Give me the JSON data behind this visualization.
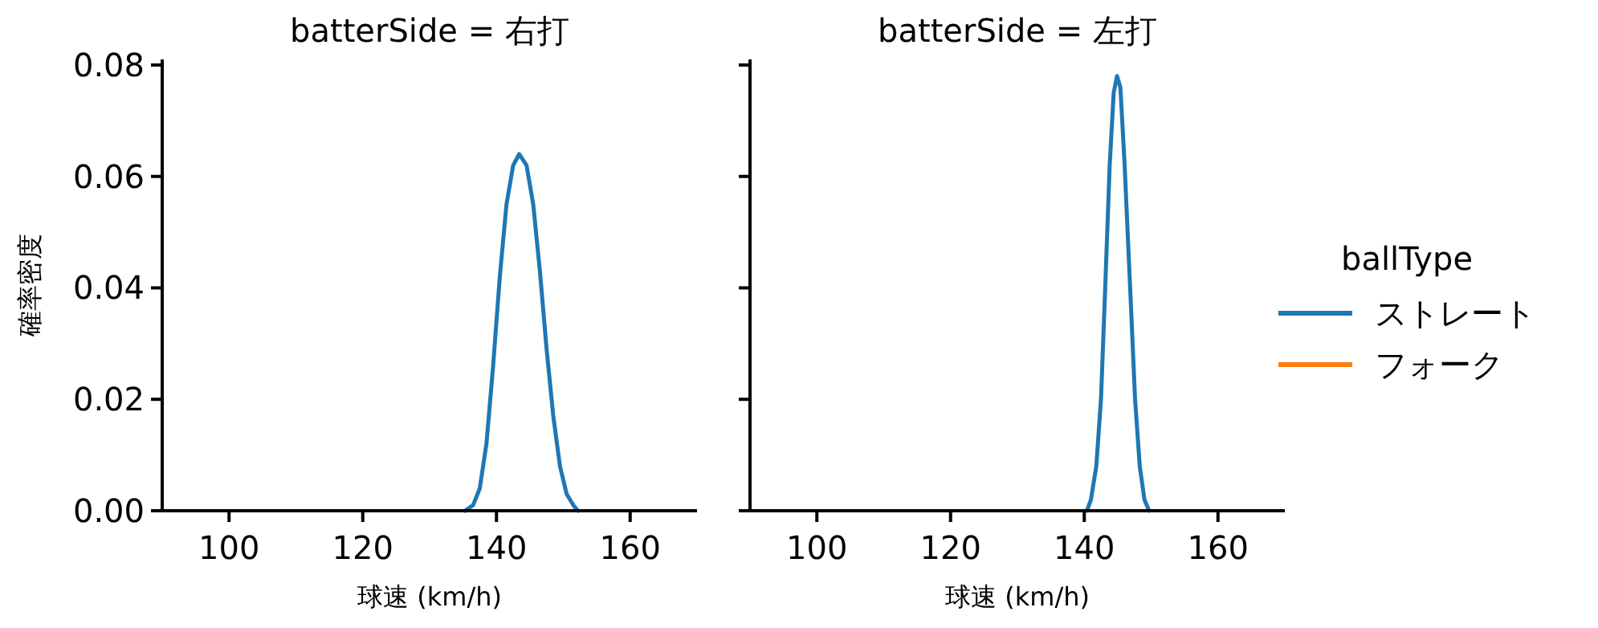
{
  "chart_data": [
    {
      "type": "line",
      "title": "batterSide = 右打",
      "xlabel": "球速 (km/h)",
      "ylabel": "確率密度",
      "xlim": [
        90,
        170
      ],
      "xticks": [
        100,
        120,
        140,
        160
      ],
      "ylim": [
        0,
        0.081
      ],
      "yticks": [
        {
          "value": 0,
          "label": "0.00"
        },
        {
          "value": 0.02,
          "label": "0.02"
        },
        {
          "value": 0.04,
          "label": "0.04"
        },
        {
          "value": 0.06,
          "label": "0.06"
        },
        {
          "value": 0.08,
          "label": "0.08"
        }
      ],
      "grid": false,
      "legend": false,
      "series": [
        {
          "color": "#1f77b4",
          "x": [
            135.3,
            136.5,
            137.5,
            138.5,
            139.5,
            140.5,
            141.5,
            142.5,
            143.4,
            144.5,
            145.5,
            146.5,
            147.5,
            148.5,
            149.5,
            150.5,
            151.5,
            152.2
          ],
          "values": [
            0,
            0.001,
            0.004,
            0.012,
            0.026,
            0.042,
            0.055,
            0.062,
            0.064,
            0.062,
            0.055,
            0.043,
            0.029,
            0.017,
            0.008,
            0.003,
            0.001,
            0
          ]
        }
      ]
    },
    {
      "type": "line",
      "title": "batterSide = 左打",
      "xlabel": "球速 (km/h)",
      "xlim": [
        90,
        170
      ],
      "xticks": [
        100,
        120,
        140,
        160
      ],
      "ylim": [
        0,
        0.081
      ],
      "yticks": [
        0,
        0.02,
        0.04,
        0.06,
        0.08
      ],
      "tick_labels": "x",
      "grid": false,
      "legend": "right",
      "legend_title": "ballType",
      "series": [
        {
          "name": "ストレート",
          "color": "#1f77b4",
          "x": [
            140.4,
            141,
            141.8,
            142.5,
            143.1,
            143.8,
            144.4,
            144.9,
            145.4,
            146,
            146.9,
            147.6,
            148.3,
            149,
            149.7
          ],
          "values": [
            0,
            0.002,
            0.008,
            0.02,
            0.039,
            0.062,
            0.075,
            0.078,
            0.076,
            0.063,
            0.039,
            0.02,
            0.008,
            0.002,
            0
          ]
        },
        {
          "name": "フォーク",
          "color": "#ff7f0e"
        }
      ]
    }
  ]
}
